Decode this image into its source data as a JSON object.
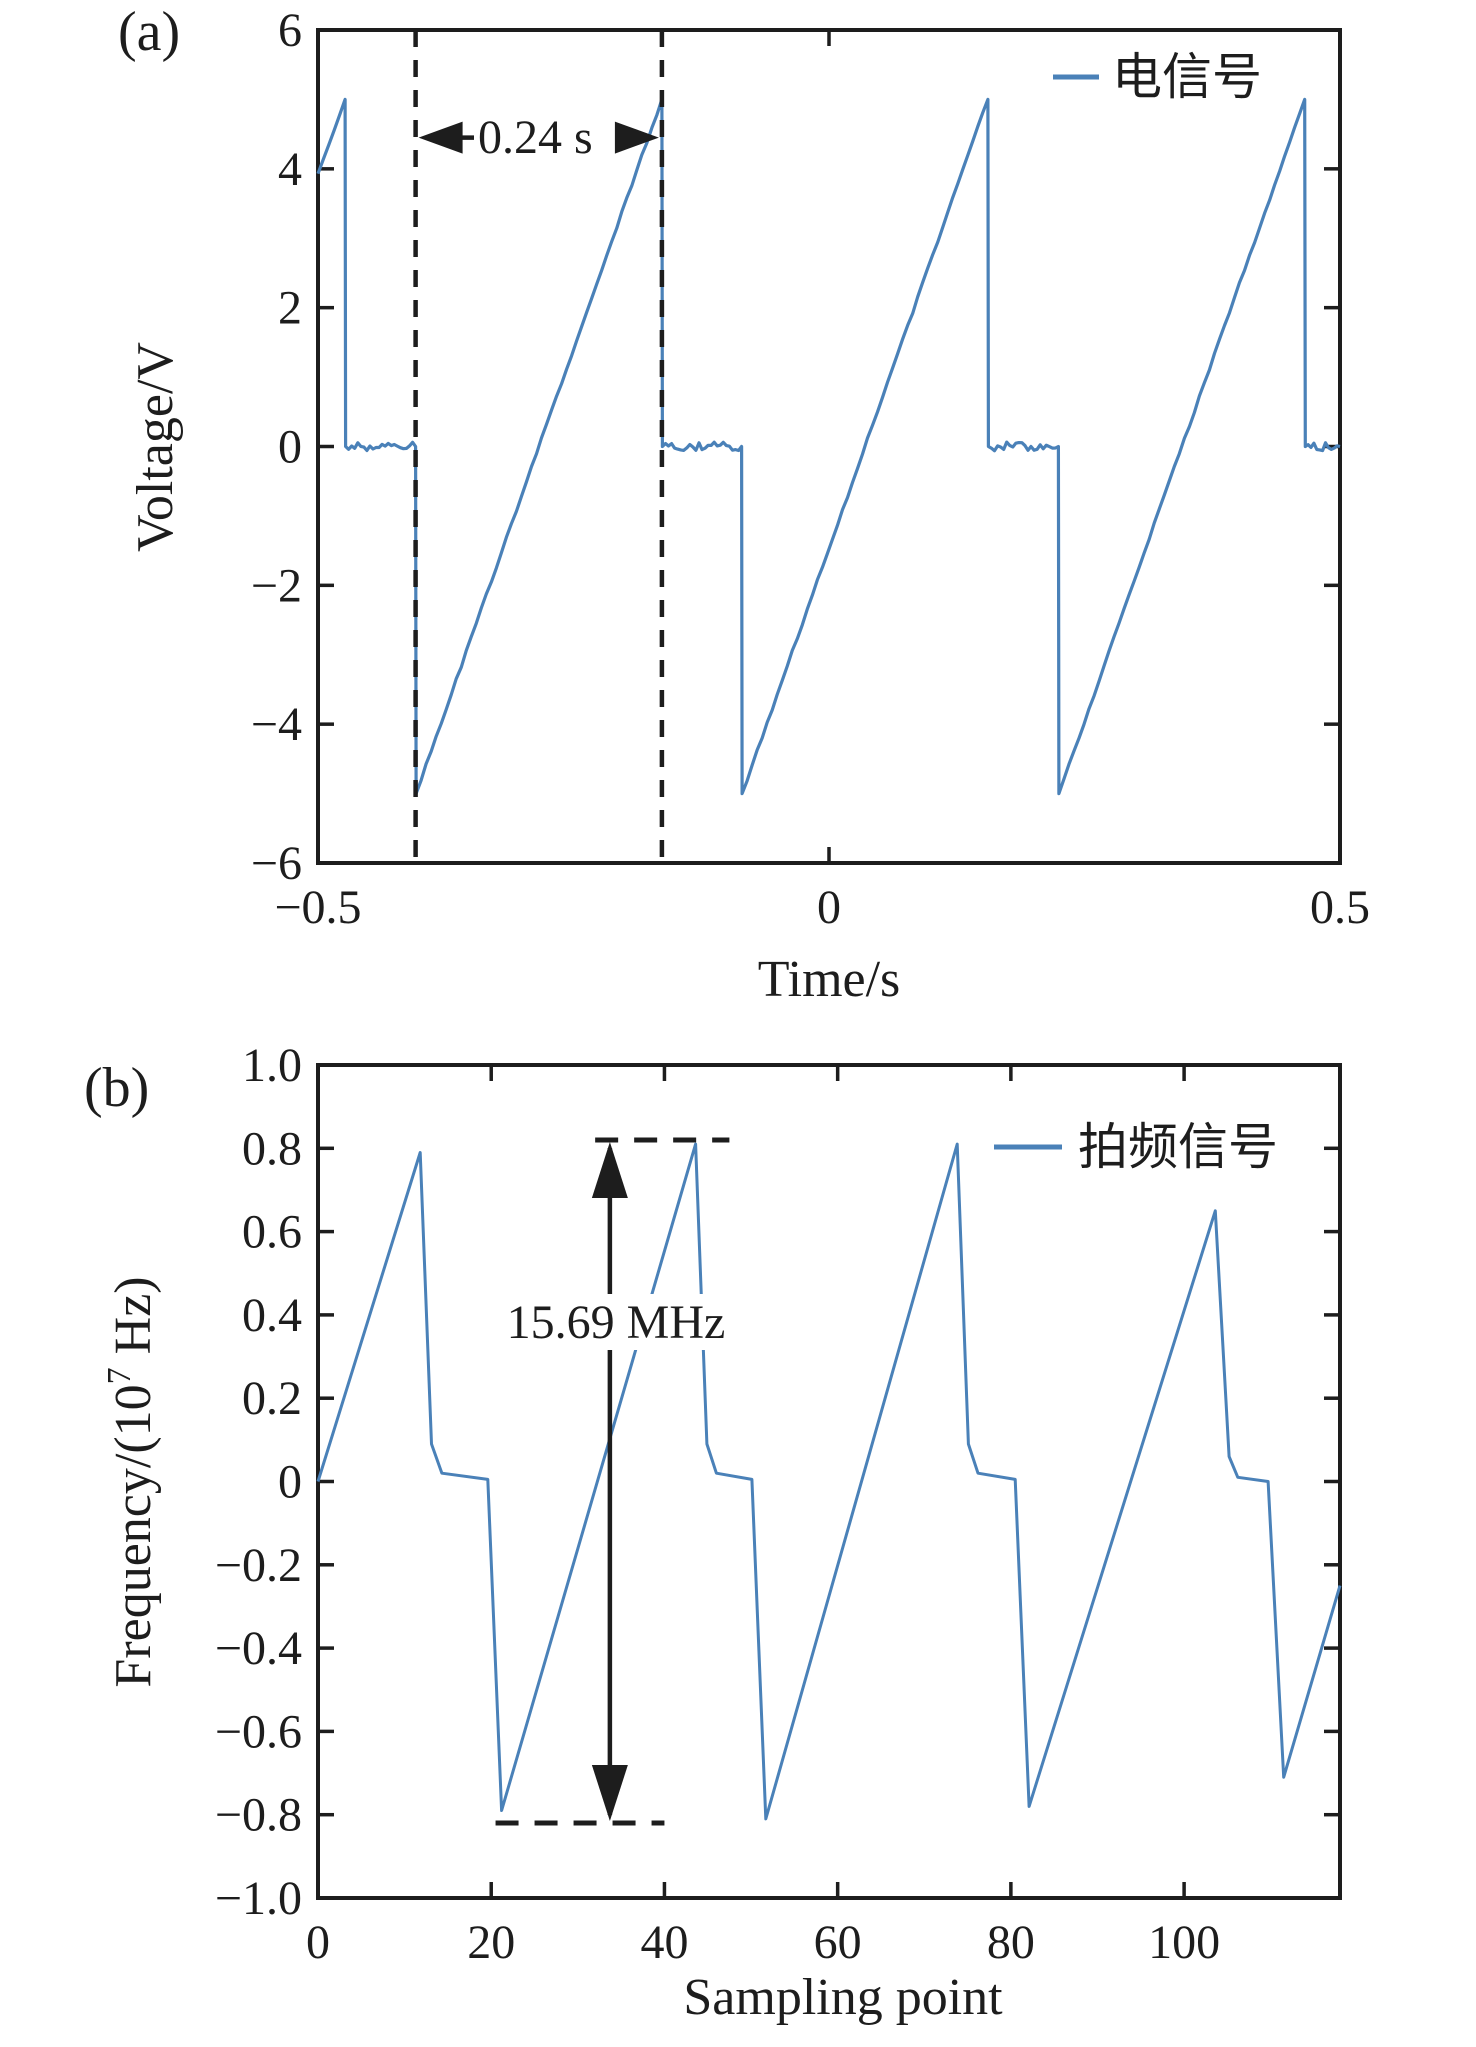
{
  "figure": {
    "background": "#ffffff",
    "signal_color": "#4a81b8",
    "ink_color": "#1d1d1d"
  },
  "chart_data": [
    {
      "type": "line",
      "panel_tag": "(a)",
      "legend": "电信号",
      "xlabel": "Time/s",
      "ylabel": "Voltage/V",
      "xlim": [
        -0.5,
        0.5
      ],
      "ylim": [
        -6,
        6
      ],
      "grid": false,
      "legend_position": "top-right",
      "xticks": {
        "values": [
          -0.5,
          0,
          0.5
        ],
        "labels": [
          "−0.5",
          "0",
          "0.5"
        ]
      },
      "yticks": {
        "values": [
          6,
          4,
          2,
          0,
          -2,
          -4,
          -6
        ],
        "labels": [
          "6",
          "4",
          "2",
          "0",
          "−2",
          "−4",
          "−6"
        ]
      },
      "series": [
        {
          "name": "电信号",
          "description": "noisy sawtooth: ramps 0.24 s from −5 V to +5 V, drops to 0 V, holds ~0.07 s, period ≈0.32 s",
          "keypoints": [
            [
              -0.5,
              3.93,
              "ramp"
            ],
            [
              -0.4735,
              5.0,
              "jump"
            ],
            [
              -0.473,
              0.0,
              "flat"
            ],
            [
              -0.4045,
              0.0,
              "jump"
            ],
            [
              -0.404,
              -5.0,
              "ramp"
            ],
            [
              -0.1635,
              5.0,
              "jump"
            ],
            [
              -0.163,
              0.0,
              "flat"
            ],
            [
              -0.0855,
              0.0,
              "jump"
            ],
            [
              -0.085,
              -5.0,
              "ramp"
            ],
            [
              0.1555,
              5.0,
              "jump"
            ],
            [
              0.156,
              0.0,
              "flat"
            ],
            [
              0.2245,
              0.0,
              "jump"
            ],
            [
              0.225,
              -5.0,
              "ramp"
            ],
            [
              0.4655,
              5.0,
              "jump"
            ],
            [
              0.466,
              0.0,
              "flat"
            ],
            [
              0.5,
              0.0,
              "end"
            ]
          ]
        }
      ],
      "annotation": {
        "label": "0.24 s",
        "dashed_x": [
          -0.4045,
          -0.1635
        ],
        "arrow_y": 4.45
      }
    },
    {
      "type": "line",
      "panel_tag": "(b)",
      "legend": "拍频信号",
      "xlabel": "Sampling point",
      "ylabel": "Frequency/(10⁷ Hz)",
      "ylabel_parts": {
        "main": "Frequency/(10",
        "sup": "7",
        "tail": " Hz)"
      },
      "xlim": [
        0,
        118
      ],
      "ylim": [
        -1.0,
        1.0
      ],
      "grid": false,
      "legend_position": "top-right",
      "xticks": {
        "values": [
          0,
          20,
          40,
          60,
          80,
          100
        ],
        "labels": [
          "0",
          "20",
          "40",
          "60",
          "80",
          "100"
        ]
      },
      "yticks": {
        "values": [
          1.0,
          0.8,
          0.6,
          0.4,
          0.2,
          0,
          -0.2,
          -0.4,
          -0.6,
          -0.8,
          -1.0
        ],
        "labels": [
          "1.0",
          "0.8",
          "0.6",
          "0.4",
          "0.2",
          "0",
          "−0.2",
          "−0.4",
          "−0.6",
          "−0.8",
          "−1.0"
        ]
      },
      "series": [
        {
          "name": "拍频信号",
          "description": "beat-frequency sawtooth, period ≈30 sampling points, swing ≈ ±0.8×10⁷ Hz",
          "points": [
            [
              0,
              0
            ],
            [
              11.8,
              0.79
            ],
            [
              13.1,
              0.09
            ],
            [
              14.3,
              0.02
            ],
            [
              19.6,
              0.005
            ],
            [
              21.2,
              -0.79
            ],
            [
              43.6,
              0.81
            ],
            [
              44.9,
              0.09
            ],
            [
              46.0,
              0.02
            ],
            [
              50.1,
              0.005
            ],
            [
              51.7,
              -0.81
            ],
            [
              73.8,
              0.81
            ],
            [
              75.1,
              0.09
            ],
            [
              76.2,
              0.02
            ],
            [
              80.5,
              0.005
            ],
            [
              82.1,
              -0.78
            ],
            [
              103.6,
              0.65
            ],
            [
              105.2,
              0.06
            ],
            [
              106.2,
              0.01
            ],
            [
              109.7,
              0.0
            ],
            [
              111.5,
              -0.71
            ],
            [
              118,
              -0.25
            ]
          ]
        }
      ],
      "annotation": {
        "label": "15.69 MHz",
        "arrow_x": 33.7,
        "dash_top": {
          "y": 0.82,
          "x1": 32.0,
          "x2": 47.5
        },
        "dash_bottom": {
          "y": -0.82,
          "x1": 20.5,
          "x2": 40.0
        },
        "label_center": [
          34.3,
          0.39
        ]
      }
    }
  ]
}
